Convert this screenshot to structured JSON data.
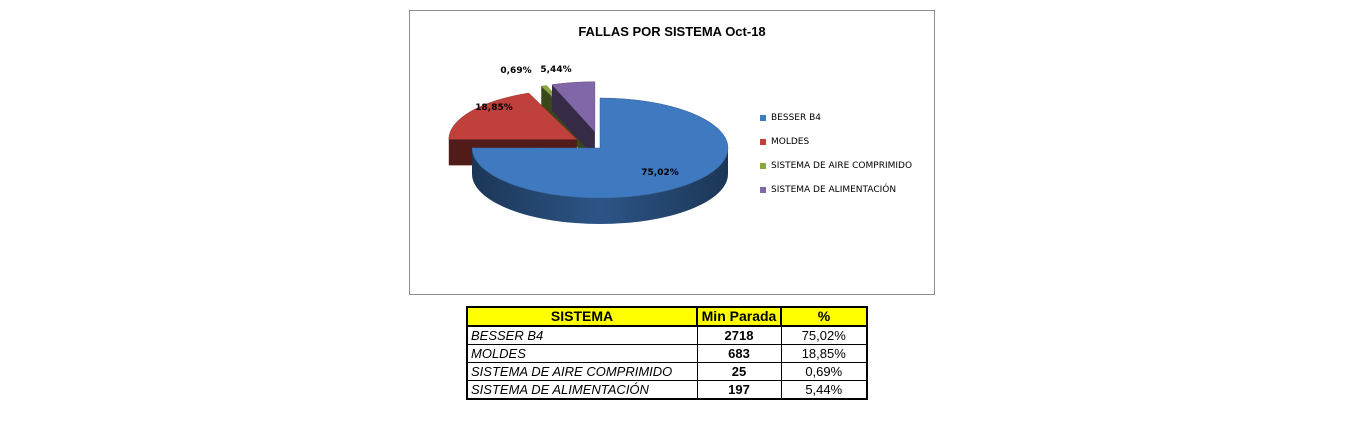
{
  "chart_data": {
    "type": "pie",
    "title": "FALLAS POR SISTEMA Oct-18",
    "categories": [
      "BESSER B4",
      "MOLDES",
      "SISTEMA DE AIRE COMPRIMIDO",
      "SISTEMA DE ALIMENTACIÓN"
    ],
    "values": [
      75.02,
      18.85,
      0.69,
      5.44
    ],
    "data_labels": [
      "75,02%",
      "18,85%",
      "0,69%",
      "5,44%"
    ],
    "colors": [
      "#3f79c0",
      "#c0403c",
      "#87a83c",
      "#8166a8"
    ],
    "legend_position": "right",
    "style": "3d-exploded"
  },
  "table": {
    "headers": [
      "SISTEMA",
      "Min Parada",
      "%"
    ],
    "rows": [
      [
        "BESSER B4",
        "2718",
        "75,02%"
      ],
      [
        "MOLDES",
        "683",
        "18,85%"
      ],
      [
        "SISTEMA DE AIRE COMPRIMIDO",
        "25",
        "0,69%"
      ],
      [
        "SISTEMA DE ALIMENTACIÓN",
        "197",
        "5,44%"
      ]
    ]
  }
}
